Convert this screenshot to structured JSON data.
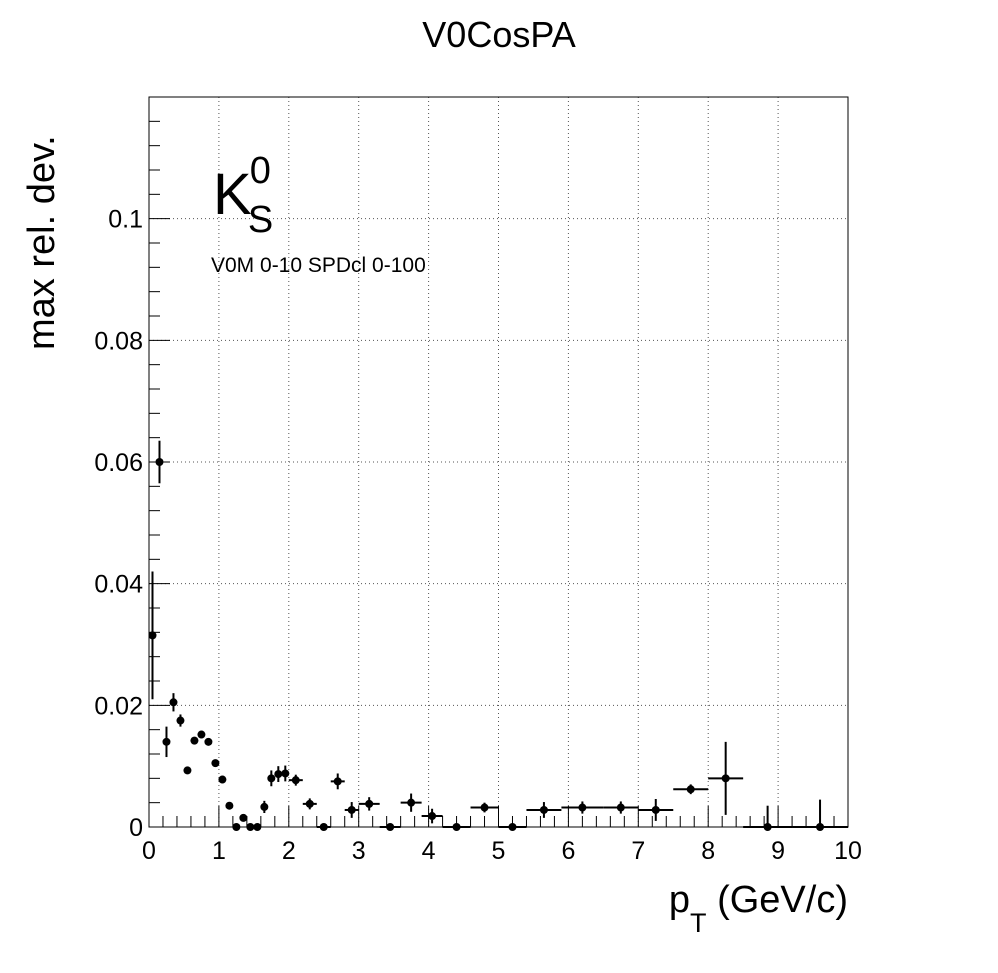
{
  "chart_data": {
    "type": "scatter",
    "title": "V0CosPA",
    "xlabel": {
      "main": "p",
      "sub": "T",
      "rest": " (GeV/c)"
    },
    "ylabel": "max rel. dev.",
    "xlim": [
      0,
      10
    ],
    "ylim": [
      0,
      0.12
    ],
    "x_ticks": [
      "0",
      "1",
      "2",
      "3",
      "4",
      "5",
      "6",
      "7",
      "8",
      "9",
      "10"
    ],
    "y_ticks": [
      {
        "value": 0,
        "label": "0"
      },
      {
        "value": 0.02,
        "label": "0.02"
      },
      {
        "value": 0.04,
        "label": "0.04"
      },
      {
        "value": 0.06,
        "label": "0.06"
      },
      {
        "value": 0.08,
        "label": "0.08"
      },
      {
        "value": 0.1,
        "label": "0.1"
      }
    ],
    "grid": true,
    "annotations": {
      "particle": {
        "base": "K",
        "sup": "0",
        "sub": "S"
      },
      "selection": "V0M 0-10 SPDcl 0-100"
    },
    "points": [
      {
        "x": 0.05,
        "y": 0.0315,
        "xerr": 0.05,
        "yerr": 0.0105
      },
      {
        "x": 0.15,
        "y": 0.06,
        "xerr": 0.05,
        "yerr": 0.0035
      },
      {
        "x": 0.25,
        "y": 0.014,
        "xerr": 0.05,
        "yerr": 0.0025
      },
      {
        "x": 0.35,
        "y": 0.0205,
        "xerr": 0.05,
        "yerr": 0.0015
      },
      {
        "x": 0.45,
        "y": 0.0175,
        "xerr": 0.05,
        "yerr": 0.001
      },
      {
        "x": 0.55,
        "y": 0.0093,
        "xerr": 0.05,
        "yerr": 0.0006
      },
      {
        "x": 0.65,
        "y": 0.0142,
        "xerr": 0.05,
        "yerr": 0.0006
      },
      {
        "x": 0.75,
        "y": 0.0152,
        "xerr": 0.05,
        "yerr": 0.0006
      },
      {
        "x": 0.85,
        "y": 0.014,
        "xerr": 0.05,
        "yerr": 0.0006
      },
      {
        "x": 0.95,
        "y": 0.0105,
        "xerr": 0.05,
        "yerr": 0.0006
      },
      {
        "x": 1.05,
        "y": 0.0078,
        "xerr": 0.05,
        "yerr": 0.0006
      },
      {
        "x": 1.15,
        "y": 0.0035,
        "xerr": 0.05,
        "yerr": 0.0006
      },
      {
        "x": 1.25,
        "y": 0.0,
        "xerr": 0.05,
        "yerr": 0.0
      },
      {
        "x": 1.35,
        "y": 0.0015,
        "xerr": 0.05,
        "yerr": 0.0006
      },
      {
        "x": 1.45,
        "y": 0.0,
        "xerr": 0.05,
        "yerr": 0.0
      },
      {
        "x": 1.55,
        "y": 0.0,
        "xerr": 0.05,
        "yerr": 0.0
      },
      {
        "x": 1.65,
        "y": 0.0033,
        "xerr": 0.05,
        "yerr": 0.001
      },
      {
        "x": 1.75,
        "y": 0.008,
        "xerr": 0.05,
        "yerr": 0.0013
      },
      {
        "x": 1.85,
        "y": 0.0087,
        "xerr": 0.05,
        "yerr": 0.0013
      },
      {
        "x": 1.95,
        "y": 0.0088,
        "xerr": 0.05,
        "yerr": 0.0013
      },
      {
        "x": 2.1,
        "y": 0.0077,
        "xerr": 0.1,
        "yerr": 0.0009
      },
      {
        "x": 2.3,
        "y": 0.0038,
        "xerr": 0.1,
        "yerr": 0.0009
      },
      {
        "x": 2.5,
        "y": 0.0,
        "xerr": 0.1,
        "yerr": 0.0
      },
      {
        "x": 2.7,
        "y": 0.0075,
        "xerr": 0.1,
        "yerr": 0.0013
      },
      {
        "x": 2.9,
        "y": 0.0028,
        "xerr": 0.1,
        "yerr": 0.0013
      },
      {
        "x": 3.15,
        "y": 0.0038,
        "xerr": 0.15,
        "yerr": 0.0011
      },
      {
        "x": 3.45,
        "y": 0.0,
        "xerr": 0.15,
        "yerr": 0.0
      },
      {
        "x": 3.75,
        "y": 0.004,
        "xerr": 0.15,
        "yerr": 0.0015
      },
      {
        "x": 4.05,
        "y": 0.0018,
        "xerr": 0.15,
        "yerr": 0.0012
      },
      {
        "x": 4.4,
        "y": 0.0,
        "xerr": 0.2,
        "yerr": 0.0
      },
      {
        "x": 4.8,
        "y": 0.0032,
        "xerr": 0.2,
        "yerr": 0.0008
      },
      {
        "x": 5.2,
        "y": 0.0,
        "xerr": 0.2,
        "yerr": 0.0
      },
      {
        "x": 5.65,
        "y": 0.0028,
        "xerr": 0.25,
        "yerr": 0.0013
      },
      {
        "x": 6.2,
        "y": 0.0032,
        "xerr": 0.3,
        "yerr": 0.001
      },
      {
        "x": 6.75,
        "y": 0.0032,
        "xerr": 0.25,
        "yerr": 0.001
      },
      {
        "x": 7.25,
        "y": 0.0028,
        "xerr": 0.25,
        "yerr": 0.0018
      },
      {
        "x": 7.75,
        "y": 0.0062,
        "xerr": 0.25,
        "yerr": 0.0008
      },
      {
        "x": 8.25,
        "y": 0.008,
        "xerr": 0.25,
        "yerr": 0.006
      },
      {
        "x": 8.85,
        "y": 0.0,
        "xerr": 0.35,
        "yerr": 0.0035
      },
      {
        "x": 9.6,
        "y": 0.0,
        "xerr": 0.4,
        "yerr": 0.0045
      }
    ]
  }
}
